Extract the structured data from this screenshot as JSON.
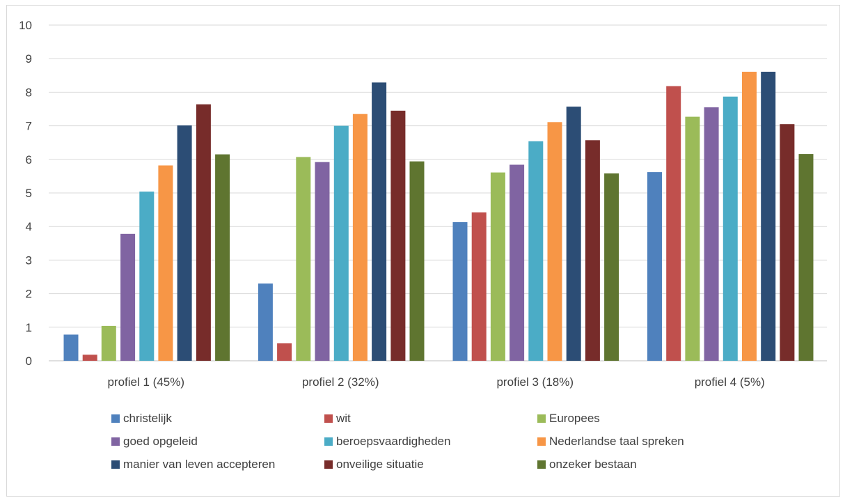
{
  "chart_data": {
    "type": "bar",
    "title": "",
    "xlabel": "",
    "ylabel": "",
    "ylim": [
      0,
      10
    ],
    "yticks": [
      "0",
      "1",
      "2",
      "3",
      "4",
      "5",
      "6",
      "7",
      "8",
      "9",
      "10"
    ],
    "grid": true,
    "legend_position": "bottom",
    "categories": [
      "profiel 1 (45%)",
      "profiel 2 (32%)",
      "profiel 3 (18%)",
      "profiel 4 (5%)"
    ],
    "series": [
      {
        "name": "christelijk",
        "color": "#4f81bd",
        "values": [
          0.78,
          2.3,
          4.13,
          5.62
        ]
      },
      {
        "name": "wit",
        "color": "#c0504d",
        "values": [
          0.18,
          0.52,
          4.42,
          8.18
        ]
      },
      {
        "name": "Europees",
        "color": "#9bbb59",
        "values": [
          1.04,
          6.07,
          5.61,
          7.27
        ]
      },
      {
        "name": "goed opgeleid",
        "color": "#8064a2",
        "values": [
          3.78,
          5.92,
          5.84,
          7.55
        ]
      },
      {
        "name": "beroepsvaardigheden",
        "color": "#4bacc6",
        "values": [
          5.04,
          7.0,
          6.54,
          7.87
        ]
      },
      {
        "name": "Nederlandse taal spreken",
        "color": "#f79646",
        "values": [
          5.82,
          7.35,
          7.11,
          8.61
        ]
      },
      {
        "name": "manier van leven accepteren",
        "color": "#2c4d75",
        "values": [
          7.01,
          8.29,
          7.57,
          8.61
        ]
      },
      {
        "name": "onveilige situatie",
        "color": "#772c2a",
        "values": [
          7.64,
          7.45,
          6.57,
          7.05
        ]
      },
      {
        "name": "onzeker bestaan",
        "color": "#5f7530",
        "values": [
          6.15,
          5.94,
          5.58,
          6.16
        ]
      }
    ]
  }
}
